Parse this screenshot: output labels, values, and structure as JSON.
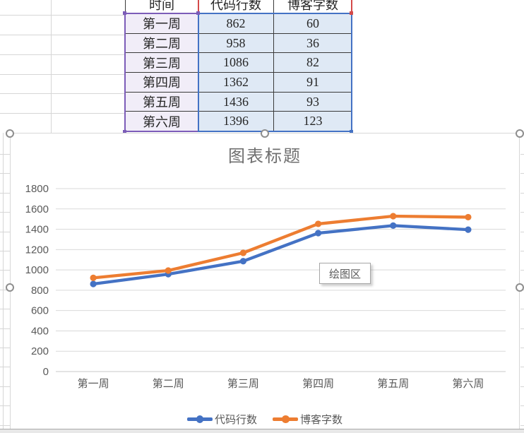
{
  "sheet": {
    "table": {
      "columns": [
        "时间",
        "代码行数",
        "博客字数"
      ],
      "rows": [
        {
          "time": "第一周",
          "code": "862",
          "blog": "60"
        },
        {
          "time": "第二周",
          "code": "958",
          "blog": "36"
        },
        {
          "time": "第三周",
          "code": "1086",
          "blog": "82"
        },
        {
          "time": "第四周",
          "code": "1362",
          "blog": "91"
        },
        {
          "time": "第五周",
          "code": "1436",
          "blog": "93"
        },
        {
          "time": "第六周",
          "code": "1396",
          "blog": "123"
        }
      ],
      "highlight_colors": {
        "categories": "#7c5cb8",
        "headers": "#d44a4a",
        "values": "#4472c4"
      }
    }
  },
  "chart": {
    "plot_area_tooltip": "绘图区"
  },
  "chart_data": {
    "type": "line",
    "stacked": true,
    "title": "图表标题",
    "categories": [
      "第一周",
      "第二周",
      "第三周",
      "第四周",
      "第五周",
      "第六周"
    ],
    "series": [
      {
        "name": "代码行数",
        "color": "#4472C4",
        "values": [
          862,
          958,
          1086,
          1362,
          1436,
          1396
        ]
      },
      {
        "name": "博客字数",
        "color": "#ED7D31",
        "values": [
          60,
          36,
          82,
          91,
          93,
          123
        ]
      }
    ],
    "plotted_cumulative": [
      {
        "name": "代码行数",
        "values": [
          862,
          958,
          1086,
          1362,
          1436,
          1396
        ]
      },
      {
        "name": "博客字数",
        "values": [
          922,
          994,
          1168,
          1453,
          1529,
          1519
        ]
      }
    ],
    "ylim": [
      0,
      1800
    ],
    "ytick_step": 200,
    "ytick_labels": [
      "0",
      "200",
      "400",
      "600",
      "800",
      "1000",
      "1200",
      "1400",
      "1600",
      "1800"
    ],
    "grid": true,
    "legend_position": "bottom",
    "gridline_color": "#d9d9d9",
    "label_color": "#595959"
  }
}
